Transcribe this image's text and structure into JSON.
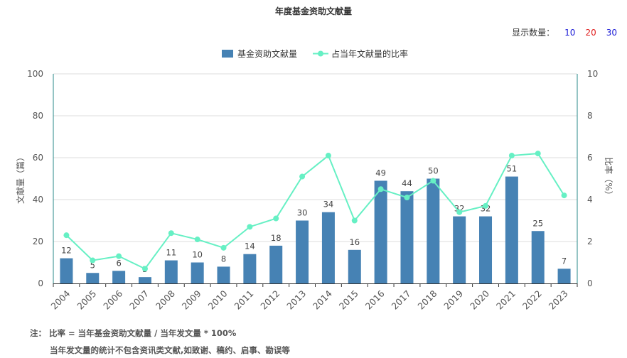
{
  "title": "年度基金资助文献量",
  "display_count": {
    "label": "显示数量：",
    "options": [
      {
        "value": "10",
        "color": "#1a1ad6"
      },
      {
        "value": "20",
        "color": "#e01e1e"
      },
      {
        "value": "30",
        "color": "#1a1ad6"
      }
    ]
  },
  "legend": {
    "bar_label": "基金资助文献量",
    "line_label": "占当年文献量的比率"
  },
  "colors": {
    "bar": "#4682b4",
    "line": "#66f0c4",
    "axis_right": "#2a8a8a"
  },
  "chart_data": {
    "type": "bar+line",
    "categories": [
      "2004",
      "2005",
      "2006",
      "2007",
      "2008",
      "2009",
      "2010",
      "2011",
      "2012",
      "2013",
      "2014",
      "2015",
      "2016",
      "2017",
      "2018",
      "2019",
      "2020",
      "2021",
      "2022",
      "2023"
    ],
    "series": [
      {
        "name": "基金资助文献量",
        "type": "bar",
        "axis": "left",
        "values": [
          12,
          5,
          6,
          3,
          11,
          10,
          8,
          14,
          18,
          30,
          34,
          16,
          49,
          44,
          50,
          32,
          32,
          51,
          25,
          7
        ]
      },
      {
        "name": "占当年文献量的比率",
        "type": "line",
        "axis": "right",
        "values": [
          2.3,
          1.1,
          1.3,
          0.7,
          2.4,
          2.1,
          1.7,
          2.7,
          3.1,
          5.1,
          6.1,
          3.0,
          4.5,
          4.1,
          4.9,
          3.4,
          3.7,
          6.1,
          6.2,
          4.2
        ]
      }
    ],
    "ylabel_left": "文献量（篇）",
    "ylabel_right": "比率（%）",
    "ylim_left": [
      0,
      100
    ],
    "ylim_right": [
      0,
      10
    ],
    "yticks_left": [
      "0",
      "20",
      "40",
      "60",
      "80",
      "100"
    ],
    "yticks_right": [
      "0",
      "2",
      "4",
      "6",
      "8",
      "10"
    ],
    "grid": true,
    "legend_position": "top-center"
  },
  "notes": {
    "line1": "注： 比率 = 当年基金资助文献量 / 当年发文量 * 100%",
    "line2": "当年发文量的统计不包含资讯类文献,如致谢、稿约、启事、勘误等"
  }
}
